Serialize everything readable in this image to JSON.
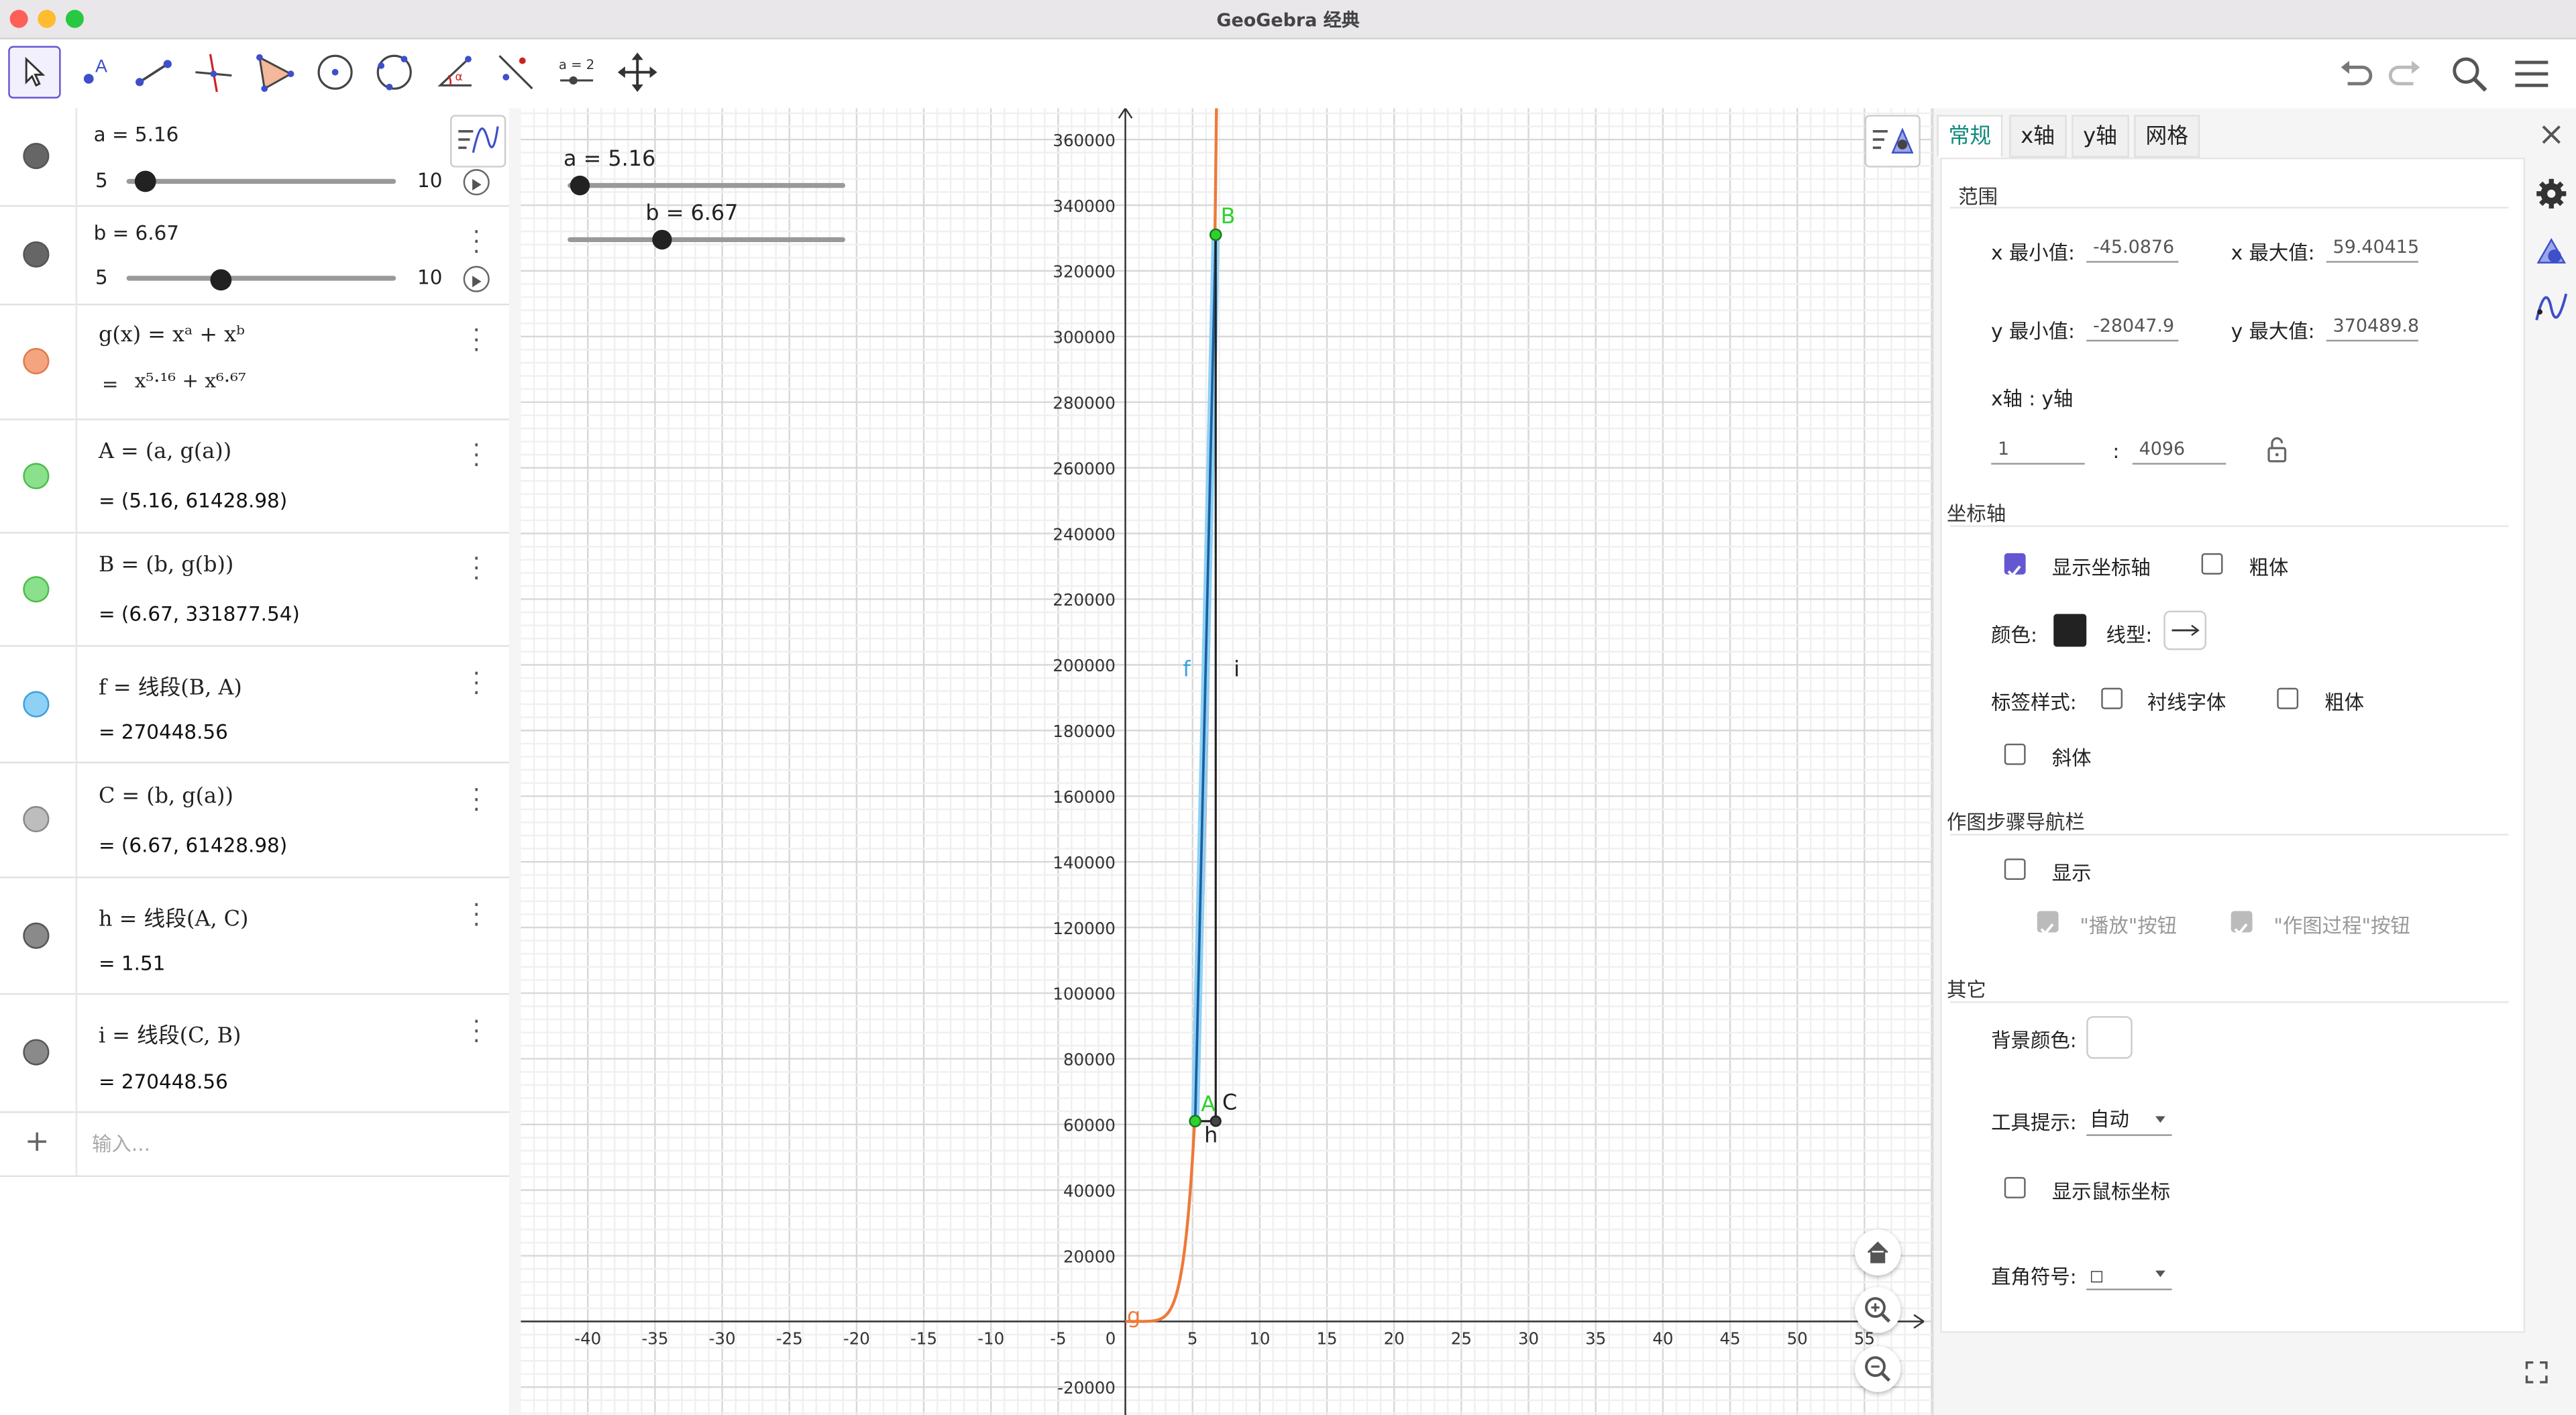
{
  "window": {
    "title": "GeoGebra 经典"
  },
  "toolbar": {
    "tools": [
      "move-tool",
      "point-tool",
      "segment-tool",
      "perpendicular-tool",
      "polygon-tool",
      "circle-tool",
      "circle-3pts-tool",
      "angle-tool",
      "reflect-tool",
      "slider-tool",
      "move-view-tool"
    ],
    "slider_tool_label": "a = 2"
  },
  "algebra": {
    "slider_a": {
      "def": "a = 5.16",
      "min": "5",
      "max": "10",
      "value": 5.16
    },
    "slider_b": {
      "def": "b = 6.67",
      "min": "5",
      "max": "10",
      "value": 6.67
    },
    "g": {
      "def": "g(x) = xᵃ + xᵇ",
      "value_prefix": "= ",
      "value": "x⁵·¹⁶ + x⁶·⁶⁷",
      "color": "#f4a57f"
    },
    "A": {
      "def": "A = (a, g(a))",
      "value": "= (5.16, 61428.98)",
      "color": "#8be08b"
    },
    "B": {
      "def": "B = (b, g(b))",
      "value": "= (6.67, 331877.54)",
      "color": "#8be08b"
    },
    "f": {
      "def": "f = 线段(B, A)",
      "value": "= 270448.56",
      "color": "#8fd0f5"
    },
    "C": {
      "def": "C = (b, g(a))",
      "value": "= (6.67, 61428.98)",
      "color": "#bdbdbd"
    },
    "h": {
      "def": "h = 线段(A, C)",
      "value": "= 1.51",
      "color": "#8a8a8a"
    },
    "i": {
      "def": "i = 线段(C, B)",
      "value": "= 270448.56",
      "color": "#8a8a8a"
    },
    "input_placeholder": "输入..."
  },
  "graphics": {
    "slider_a_label": "a = 5.16",
    "slider_b_label": "b = 6.67",
    "x_ticks": [
      "-40",
      "-35",
      "-30",
      "-25",
      "-20",
      "-15",
      "-10",
      "-5",
      "0",
      "5",
      "10",
      "15",
      "20",
      "25",
      "30",
      "35",
      "40",
      "45",
      "50",
      "55"
    ],
    "y_ticks": [
      "360000",
      "340000",
      "320000",
      "300000",
      "280000",
      "260000",
      "240000",
      "220000",
      "200000",
      "180000",
      "160000",
      "140000",
      "120000",
      "100000",
      "80000",
      "60000",
      "40000",
      "20000",
      "-20000"
    ],
    "labels": {
      "A": "A",
      "B": "B",
      "C": "C",
      "f": "f",
      "g": "g",
      "h": "h",
      "i": "i"
    },
    "colors": {
      "curve": "#ed7a3a",
      "segment_f": "#3aa0e0",
      "segment_fcore": "#1a5fa0",
      "point": "#2fd12f",
      "black": "#222222"
    }
  },
  "settings": {
    "tabs": [
      "常规",
      "x轴",
      "y轴",
      "网格"
    ],
    "range": {
      "title": "范围",
      "xmin_label": "x 最小值:",
      "xmin": "-45.0876",
      "xmax_label": "x 最大值:",
      "xmax": "59.40415",
      "ymin_label": "y 最小值:",
      "ymin": "-28047.9",
      "ymax_label": "y 最大值:",
      "ymax": "370489.8",
      "ratio_label": "x轴 : y轴",
      "ratio_x": "1",
      "ratio_sep": ":",
      "ratio_y": "4096"
    },
    "axes": {
      "title": "坐标轴",
      "show_axes": "显示坐标轴",
      "bold": "粗体",
      "color_label": "颜色:",
      "linetype_label": "线型:",
      "label_style": "标签样式:",
      "serif": "衬线字体",
      "bold2": "粗体",
      "italic": "斜体"
    },
    "navbar": {
      "title": "作图步骤导航栏",
      "show": "显示",
      "play_btn": "\"播放\"按钮",
      "construct_btn": "\"作图过程\"按钮"
    },
    "other": {
      "title": "其它",
      "bg_color": "背景颜色:",
      "tooltip_label": "工具提示:",
      "tooltip_value": "自动",
      "show_mouse": "显示鼠标坐标",
      "right_angle_label": "直角符号:",
      "right_angle_value": "□"
    }
  }
}
